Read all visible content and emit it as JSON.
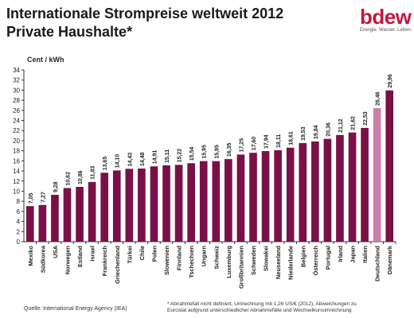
{
  "title": {
    "line1": "Internationale Strompreise weltweit 2012",
    "line2": "Private Haushalte*"
  },
  "logo": {
    "word": "bdew",
    "tagline": "Energie. Wasser. Leben."
  },
  "footer": {
    "source": "Quelle: International Energy Agency (IEA)",
    "note_line1": "* Abnahmefall nicht definiert, Umrechnung mit 1,26 US/€ (2012), Abweichungen zu",
    "note_line2": "Eurostat aufgrund unterschiedlicher Abnahmefälle und Wechselkursumrechnung"
  },
  "colors": {
    "bar": "#7a1048",
    "highlight": "#cc7fab",
    "axis": "#333333"
  },
  "chart_data": {
    "type": "bar",
    "ylabel": "Cent / kWh",
    "ylim": [
      0,
      34
    ],
    "yticks": [
      0,
      2,
      4,
      6,
      8,
      10,
      12,
      14,
      16,
      18,
      20,
      22,
      24,
      26,
      28,
      30,
      32,
      34
    ],
    "grid": false,
    "legend": "none",
    "highlight_category": "Deutschland",
    "categories": [
      "Mexiko",
      "Südkorea",
      "USA",
      "Norwegen",
      "Estland",
      "Israel",
      "Frankreich",
      "Griechenland",
      "Türkei",
      "Chile",
      "Polen",
      "Slowenien",
      "Finnland",
      "Tschechien",
      "Ungarn",
      "Schweiz",
      "Luxemburg",
      "Großbritannien",
      "Schweden",
      "Slowakei",
      "Neuseeland",
      "Niederlande",
      "Belgien",
      "Österreich",
      "Portugal",
      "Irland",
      "Japan",
      "Italien",
      "Deutschland",
      "Dänemark"
    ],
    "values": [
      7.05,
      7.27,
      9.28,
      10.62,
      10.86,
      11.83,
      13.65,
      14.1,
      14.43,
      14.48,
      14.91,
      15.11,
      15.22,
      15.54,
      15.95,
      15.95,
      16.35,
      17.25,
      17.6,
      17.94,
      18.11,
      18.61,
      19.53,
      19.84,
      20.36,
      21.12,
      21.62,
      22.53,
      26.46,
      29.96
    ],
    "value_labels": [
      "7,05",
      "7,27",
      "9,28",
      "10,62",
      "10,86",
      "11,83",
      "13,65",
      "14,10",
      "14,43",
      "14,48",
      "14,91",
      "15,11",
      "15,22",
      "15,54",
      "15,95",
      "15,95",
      "16,35",
      "17,25",
      "17,60",
      "17,94",
      "18,11",
      "18,61",
      "19,53",
      "19,84",
      "20,36",
      "21,12",
      "21,62",
      "22,53",
      "26,46",
      "29,96"
    ]
  }
}
